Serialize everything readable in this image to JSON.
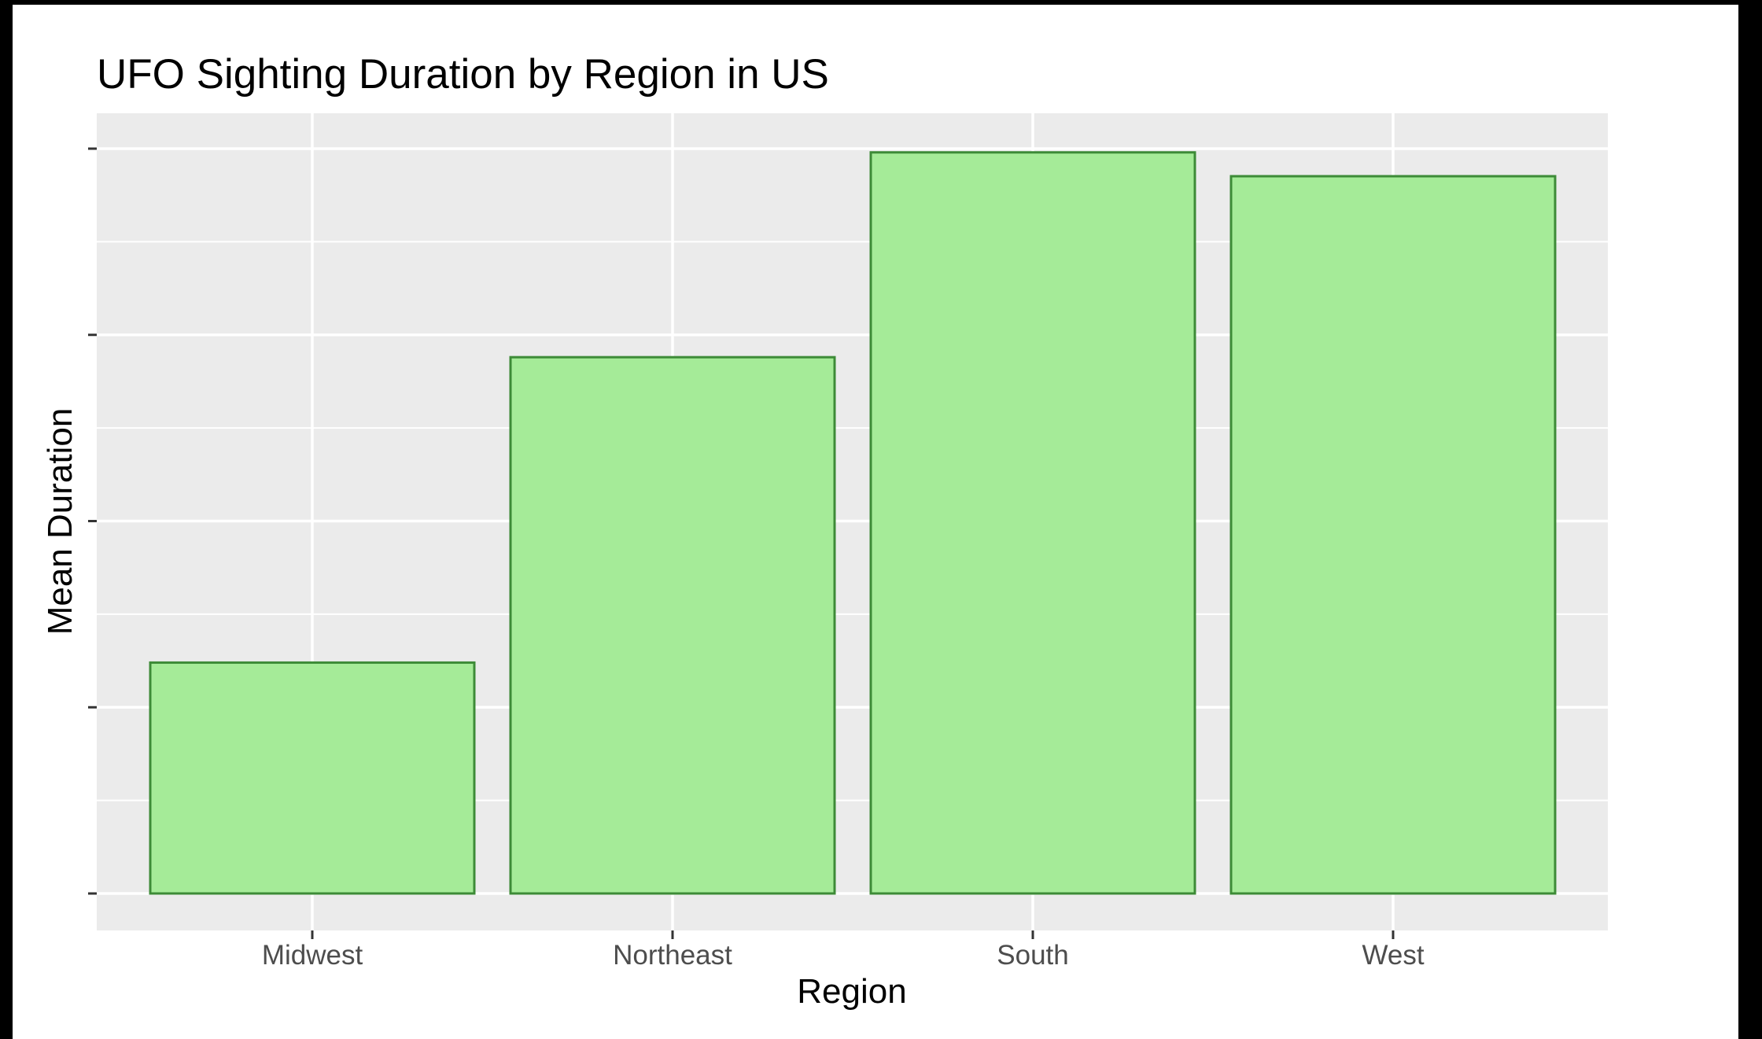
{
  "chart_data": {
    "type": "bar",
    "title": "UFO Sighting Duration by Region in US",
    "xlabel": "Region",
    "ylabel": "Mean Duration",
    "categories": [
      "Midwest",
      "Northeast",
      "South",
      "West"
    ],
    "values": [
      31,
      72,
      99.5,
      96.3
    ],
    "ylim": [
      0,
      100
    ],
    "y_tick_values": [
      0,
      25,
      50,
      75,
      100
    ],
    "y_tick_labels_shown": false,
    "grid": true,
    "legend": "none",
    "colors": {
      "bar_fill": "#a5eb98",
      "bar_stroke": "#3d8b37",
      "panel_background": "#ebebeb",
      "grid": "#ffffff",
      "page_background": "#ffffff",
      "frame": "#000000"
    }
  }
}
